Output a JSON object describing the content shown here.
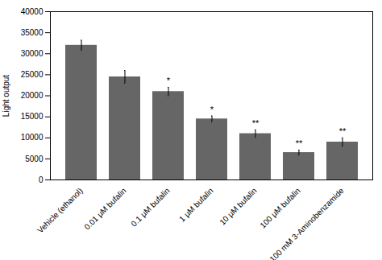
{
  "chart_data": {
    "type": "bar",
    "categories": [
      "Vehicle (ethanol)",
      "0.01 μM bufalin",
      "0.1 μM bufalin",
      "1 μM bufalin",
      "10 μM bufalin",
      "100 μM bufalin",
      "100 mM 3-Aminobenzamide"
    ],
    "values": [
      32000,
      24500,
      21000,
      14500,
      11000,
      6500,
      9000
    ],
    "errors": [
      1200,
      1500,
      1000,
      700,
      900,
      600,
      1000
    ],
    "significance": [
      "",
      "",
      "*",
      "*",
      "**",
      "**",
      "**"
    ],
    "color": "#666666",
    "ylabel": "Light output",
    "ylim": [
      0,
      40000
    ],
    "yticks": [
      0,
      5000,
      10000,
      15000,
      20000,
      25000,
      30000,
      35000,
      40000
    ],
    "grid": false
  }
}
